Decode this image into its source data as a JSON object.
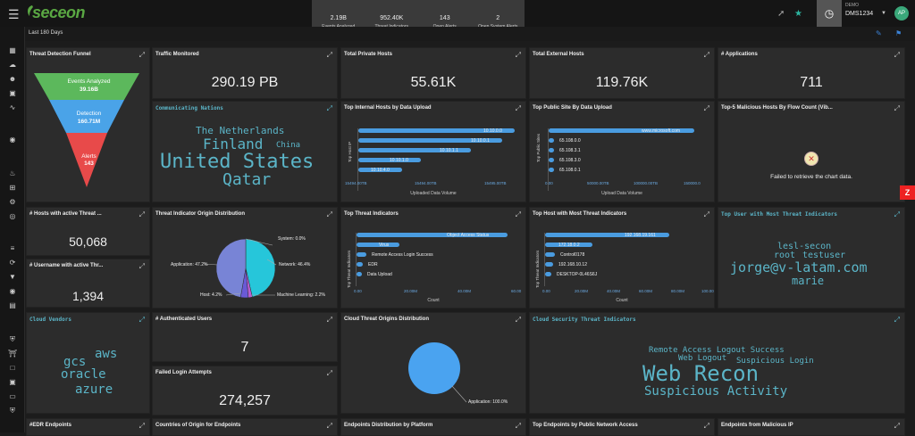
{
  "brand": "seceon",
  "stats": [
    {
      "value": "2.19B",
      "label": "Events Analyzed"
    },
    {
      "value": "952.40K",
      "label": "Threat Indicators"
    },
    {
      "value": "143",
      "label": "Open Alerts"
    },
    {
      "value": "2",
      "label": "Open System Alerts"
    }
  ],
  "account": {
    "demo_label": "DEMO",
    "tenant": "DMS1234",
    "avatar": "AP"
  },
  "range": "Last 180 Days",
  "panels": {
    "funnel": {
      "title": "Threat Detection Funnel",
      "stages": [
        {
          "name": "Events Analyzed",
          "value": "39.16B",
          "color": "#5cb85c"
        },
        {
          "name": "Detection",
          "value": "160.71M",
          "color": "#4aa3e8"
        },
        {
          "name": "Alerts",
          "value": "143",
          "color": "#e84a4a"
        }
      ]
    },
    "traffic": {
      "title": "Traffic Monitored",
      "value": "290.19 PB"
    },
    "private": {
      "title": "Total Private Hosts",
      "value": "55.61K"
    },
    "external": {
      "title": "Total External Hosts",
      "value": "119.76K"
    },
    "apps": {
      "title": "# Applications",
      "value": "711"
    },
    "nations": {
      "title": "Communicating Nations",
      "words": [
        "The Netherlands",
        "Finland",
        "China",
        "United States",
        "Qatar"
      ]
    },
    "upload": {
      "title": "Top Internal Hosts by Data Upload",
      "xlabel": "Uploaded Data Volume",
      "ylabel": "Top Host IP",
      "bars": [
        {
          "label": "10.10.0.0",
          "value": 1
        },
        {
          "label": "10.10.0.1",
          "value": 0.92
        },
        {
          "label": "10.10.1.1",
          "value": 0.72
        },
        {
          "label": "10.10.1.0",
          "value": 0.4
        },
        {
          "label": "10.10.4.0",
          "value": 0.28
        }
      ],
      "ticks": [
        "15494.00TB",
        "15494.00TB",
        "15495.00TB"
      ]
    },
    "public": {
      "title": "Top Public Site By Data Upload",
      "xlabel": "Upload Data Volume",
      "ylabel": "Top Public Sites",
      "bars": [
        {
          "label": "www.microsoft.com",
          "value": 0.93
        },
        {
          "label": "65.108.0.0",
          "value": 0.03
        },
        {
          "label": "65.108.3.1",
          "value": 0.03
        },
        {
          "label": "65.108.3.0",
          "value": 0.03
        },
        {
          "label": "65.108.0.1",
          "value": 0.03
        }
      ],
      "ticks": [
        "0.00",
        "50000.00TB",
        "100000.00TB",
        "150000.0"
      ]
    },
    "malicious": {
      "title": "Top-5 Malicious Hosts By Flow Count (Vib...",
      "error": "Failed to retrieve the chart data."
    },
    "hosts_threat": {
      "title": "# Hosts with active Threat ...",
      "value": "50,068"
    },
    "user_threat": {
      "title": "# Username with active Thr...",
      "value": "1,394"
    },
    "origin": {
      "title": "Threat Indicator Origin Distribution",
      "slices": [
        {
          "label": "System: 0.0%",
          "value": 0.0,
          "color": "#8fd14f"
        },
        {
          "label": "Network: 46.4%",
          "value": 46.4,
          "color": "#26c6da"
        },
        {
          "label": "Machine Learning: 2.2%",
          "value": 2.2,
          "color": "#b85fd1"
        },
        {
          "label": "Host: 4.2%",
          "value": 4.2,
          "color": "#6a5ad6"
        },
        {
          "label": "Application: 47.2%",
          "value": 47.2,
          "color": "#7884d6"
        }
      ]
    },
    "indicators": {
      "title": "Top Threat Indicators",
      "xlabel": "Count",
      "ylabel": "Top Threat Indicators",
      "bars": [
        {
          "label": "Object Access Status",
          "value": 0.95
        },
        {
          "label": "Virus",
          "value": 0.27
        },
        {
          "label": "Remote Access Login Success",
          "value": 0.06
        },
        {
          "label": "EDR",
          "value": 0.04
        },
        {
          "label": "Data Upload",
          "value": 0.03
        }
      ],
      "ticks": [
        "0.00",
        "20.00M",
        "40.00M",
        "60.00"
      ]
    },
    "host_most": {
      "title": "Top Host with Most Threat Indicators",
      "xlabel": "Count",
      "ylabel": "Top Threat Indicators",
      "bars": [
        {
          "label": "192.168.19.161",
          "value": 0.78
        },
        {
          "label": "172.18.0.2",
          "value": 0.3
        },
        {
          "label": "Control0178",
          "value": 0.06
        },
        {
          "label": "192.168.10.12",
          "value": 0.05
        },
        {
          "label": "DESKTOP-0L46S6J",
          "value": 0.04
        }
      ],
      "ticks": [
        "0.00",
        "20.00M",
        "40.00M",
        "60.00M",
        "80.00M",
        "100.00"
      ]
    },
    "user_most": {
      "title": "Top User with Most Threat Indicators",
      "words": [
        "lesl-secon",
        "root",
        "testuser",
        "jorge@v-latam.com",
        "marie"
      ]
    },
    "vendors": {
      "title": "Cloud Vendors",
      "words": [
        "aws",
        "gcs",
        "oracle",
        "azure"
      ]
    },
    "auth": {
      "title": "# Authenticated Users",
      "value": "7"
    },
    "failed": {
      "title": "Failed Login Attempts",
      "value": "274,257"
    },
    "cloud_origin": {
      "title": "Cloud Threat Origins Distribution",
      "slice": "Application: 100.0%"
    },
    "cloud_sec": {
      "title": "Cloud Security Threat Indicators",
      "words": [
        "Remote Access Logout Success",
        "Web Logout",
        "Suspicious Login",
        "Web Recon",
        "Suspicious Activity"
      ]
    },
    "bottom": [
      "#EDR Endpoints",
      "Countries of Origin for Endpoints",
      "Endpoints Distribution by Platform",
      "Top Endpoints by Public Network Access",
      "Endpoints from Malicious IP"
    ]
  }
}
